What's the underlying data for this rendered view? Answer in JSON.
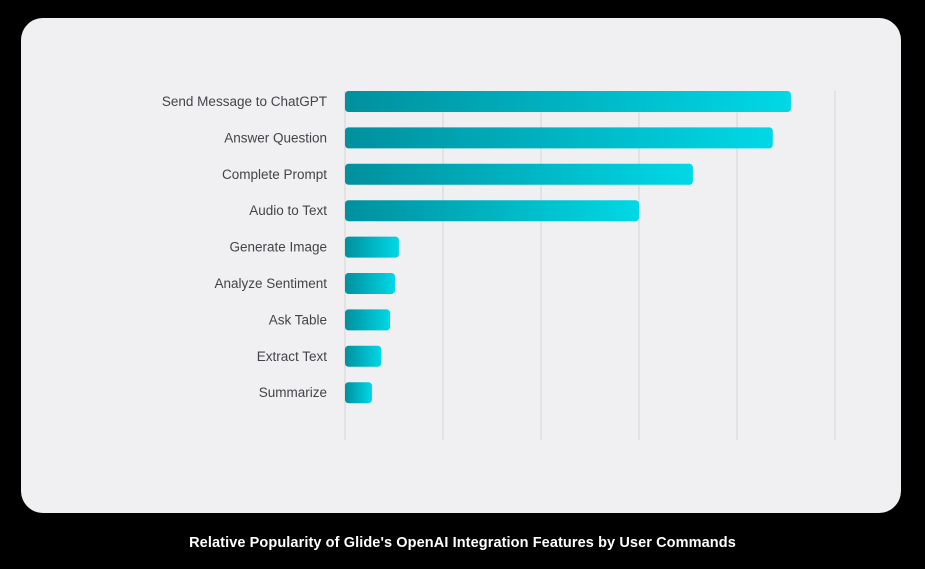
{
  "caption": "Relative Popularity of Glide's OpenAI Integration Features by User Commands",
  "colors": {
    "bar_start": "#00909e",
    "bar_end": "#00d8e6",
    "grid": "#d3d3d6",
    "label": "#444448",
    "card": "#f0f0f2",
    "page": "#000000"
  },
  "chart_data": {
    "type": "bar",
    "orientation": "horizontal",
    "title": "Relative Popularity of Glide's OpenAI Integration Features by User Commands",
    "xlabel": "",
    "ylabel": "",
    "xlim": [
      0,
      100
    ],
    "grid": true,
    "categories": [
      "Send Message to ChatGPT",
      "Answer Question",
      "Complete Prompt",
      "Audio to Text",
      "Generate Image",
      "Analyze Sentiment",
      "Ask Table",
      "Extract Text",
      "Summarize"
    ],
    "values": [
      91,
      87.3,
      71,
      60,
      11,
      10.2,
      9.2,
      7.4,
      5.5
    ]
  }
}
